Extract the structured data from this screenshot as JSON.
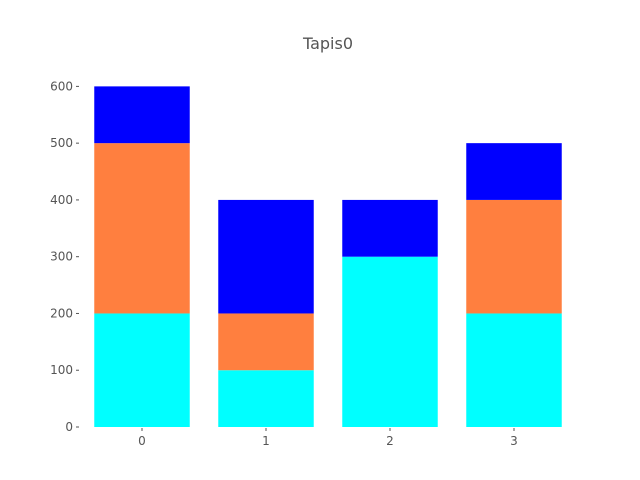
{
  "chart_data": {
    "type": "bar",
    "stacked": true,
    "title": "Tapis0",
    "xlabel": "",
    "ylabel": "",
    "categories": [
      "0",
      "1",
      "2",
      "3"
    ],
    "series": [
      {
        "values": [
          200,
          100,
          300,
          200
        ],
        "color": "#00ffff"
      },
      {
        "values": [
          300,
          100,
          0,
          200
        ],
        "color": "#ff7f3f"
      },
      {
        "values": [
          100,
          200,
          100,
          100
        ],
        "color": "#0000ff"
      }
    ],
    "ylim": [
      0,
      650
    ],
    "yticks": [
      0,
      100,
      200,
      300,
      400,
      500,
      600
    ],
    "ytick_labels": [
      "0",
      "100",
      "200",
      "300",
      "400",
      "500",
      "600"
    ],
    "grid": false,
    "legend": "none"
  }
}
